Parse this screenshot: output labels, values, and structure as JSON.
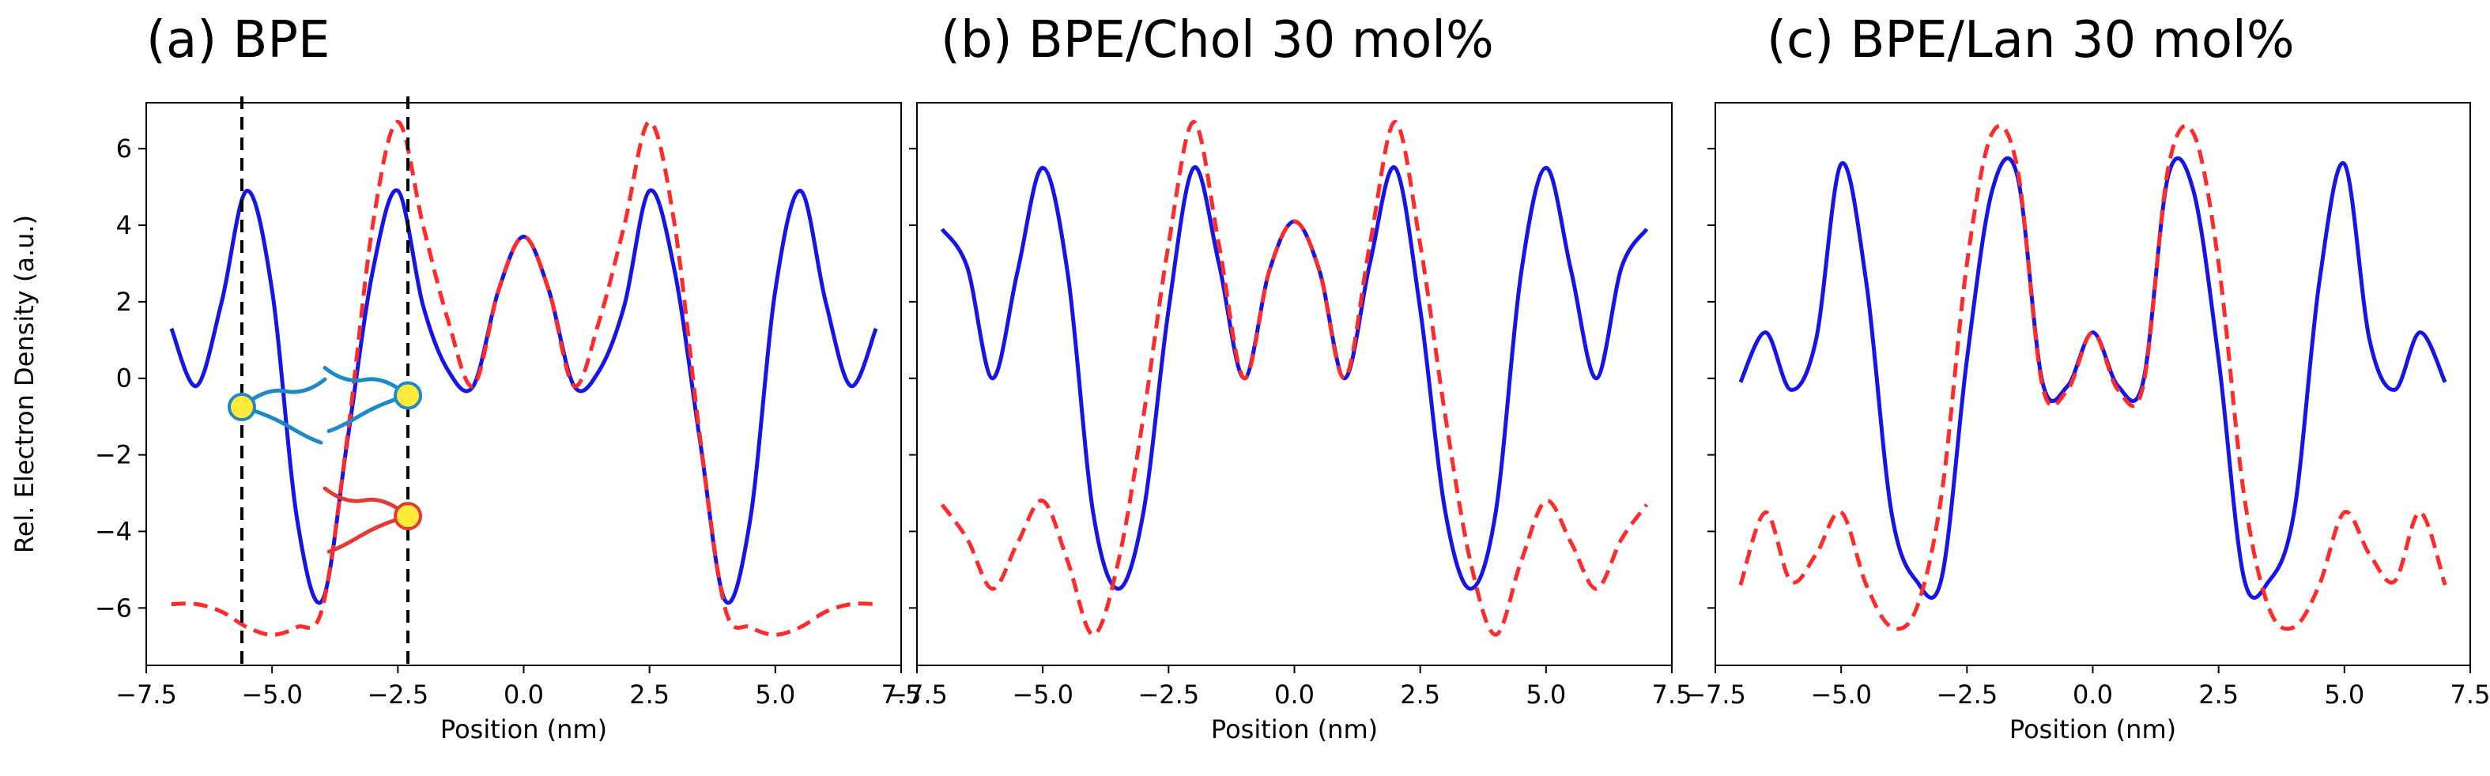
{
  "chart_data": [
    {
      "type": "line",
      "title": "(a)  BPE",
      "xlabel": "Position (nm)",
      "ylabel": "Rel. Electron Density (a.u.)",
      "xlim": [
        -7.5,
        7.5
      ],
      "ylim": [
        -7.5,
        7.2
      ],
      "xticks": [
        "−7.5",
        "−5.0",
        "−2.5",
        "0.0",
        "2.5",
        "5.0",
        "7.5"
      ],
      "yticks": [
        "−6",
        "−4",
        "−2",
        "0",
        "2",
        "4",
        "6"
      ],
      "show_ytick_labels": true,
      "vlines": [
        -5.6,
        -2.3
      ],
      "annotations": [
        {
          "type": "lipid-headgroup-icon",
          "x": -5.6,
          "y": -0.75,
          "head": "#FFEB3B",
          "tail": "#1E88C8"
        },
        {
          "type": "lipid-headgroup-icon",
          "x": -2.3,
          "y": -0.45,
          "head": "#FFEB3B",
          "tail": "#1E88C8"
        },
        {
          "type": "lipid-headgroup-icon",
          "x": -2.3,
          "y": -3.6,
          "head": "#FFEB3B",
          "tail": "#E53935"
        }
      ],
      "series": [
        {
          "color": "#1515E8",
          "style": "solid",
          "x": [
            -7.0,
            -6.5,
            -6.0,
            -5.5,
            -5.0,
            -4.5,
            -4.0,
            -3.5,
            -3.0,
            -2.5,
            -2.0,
            -1.5,
            -1.0,
            -0.5,
            0.0,
            0.5,
            1.0,
            1.5,
            2.0,
            2.5,
            3.0,
            3.5,
            4.0,
            4.5,
            5.0,
            5.5,
            6.0,
            6.5,
            7.0
          ],
          "y": [
            1.3,
            -0.2,
            2.0,
            4.9,
            2.3,
            -3.7,
            -5.8,
            -1.6,
            2.8,
            4.9,
            1.9,
            0.2,
            -0.2,
            2.3,
            3.7,
            2.3,
            -0.2,
            0.2,
            1.9,
            4.9,
            2.8,
            -1.6,
            -5.8,
            -3.7,
            2.3,
            4.9,
            2.0,
            -0.2,
            1.3
          ]
        },
        {
          "color": "#FF2A2A",
          "style": "dashed",
          "x": [
            -7.0,
            -6.5,
            -6.0,
            -5.5,
            -5.0,
            -4.5,
            -4.0,
            -3.5,
            -3.0,
            -2.5,
            -2.0,
            -1.5,
            -1.0,
            -0.5,
            0.0,
            0.5,
            1.0,
            1.5,
            2.0,
            2.5,
            3.0,
            3.5,
            4.0,
            4.5,
            5.0,
            5.5,
            6.0,
            6.5,
            7.0
          ],
          "y": [
            -5.9,
            -5.9,
            -6.1,
            -6.5,
            -6.7,
            -6.5,
            -6.0,
            -1.5,
            4.0,
            6.7,
            4.0,
            1.5,
            -0.2,
            2.3,
            3.7,
            2.3,
            -0.2,
            1.5,
            4.0,
            6.7,
            4.0,
            -1.5,
            -6.0,
            -6.5,
            -6.7,
            -6.5,
            -6.1,
            -5.9,
            -5.9
          ]
        }
      ]
    },
    {
      "type": "line",
      "title": "(b) BPE/Chol 30 mol%",
      "xlabel": "Position (nm)",
      "ylabel": "",
      "xlim": [
        -7.5,
        7.5
      ],
      "ylim": [
        -7.5,
        7.2
      ],
      "xticks": [
        "−7.5",
        "−5.0",
        "−2.5",
        "0.0",
        "2.5",
        "5.0",
        "7.5"
      ],
      "yticks": [
        "",
        "",
        "",
        "",
        "",
        "",
        ""
      ],
      "show_ytick_labels": false,
      "vlines": [],
      "annotations": [],
      "series": [
        {
          "color": "#1515E8",
          "style": "solid",
          "x": [
            -7.0,
            -6.5,
            -6.0,
            -5.5,
            -5.0,
            -4.5,
            -4.0,
            -3.5,
            -3.0,
            -2.5,
            -2.0,
            -1.5,
            -1.0,
            -0.5,
            0.0,
            0.5,
            1.0,
            1.5,
            2.0,
            2.5,
            3.0,
            3.5,
            4.0,
            4.5,
            5.0,
            5.5,
            6.0,
            6.5,
            7.0
          ],
          "y": [
            3.9,
            2.9,
            0.0,
            2.8,
            5.5,
            2.7,
            -3.5,
            -5.5,
            -3.5,
            1.8,
            5.5,
            3.0,
            0.0,
            2.8,
            4.1,
            2.8,
            0.0,
            3.0,
            5.5,
            1.8,
            -3.5,
            -5.5,
            -3.5,
            2.7,
            5.5,
            2.8,
            0.0,
            2.9,
            3.9
          ]
        },
        {
          "color": "#FF2A2A",
          "style": "dashed",
          "x": [
            -7.0,
            -6.5,
            -6.0,
            -5.5,
            -5.0,
            -4.5,
            -4.0,
            -3.5,
            -3.0,
            -2.5,
            -2.0,
            -1.5,
            -1.0,
            -0.5,
            0.0,
            0.5,
            1.0,
            1.5,
            2.0,
            2.5,
            3.0,
            3.5,
            4.0,
            4.5,
            5.0,
            5.5,
            6.0,
            6.5,
            7.0
          ],
          "y": [
            -3.3,
            -4.2,
            -5.5,
            -4.3,
            -3.2,
            -4.8,
            -6.7,
            -4.8,
            -1.0,
            3.5,
            6.7,
            3.5,
            0.0,
            2.8,
            4.1,
            2.8,
            0.0,
            3.5,
            6.7,
            3.5,
            -1.0,
            -4.8,
            -6.7,
            -4.8,
            -3.2,
            -4.3,
            -5.5,
            -4.2,
            -3.3
          ]
        }
      ]
    },
    {
      "type": "line",
      "title": "(c) BPE/Lan 30 mol%",
      "xlabel": "Position (nm)",
      "ylabel": "",
      "xlim": [
        -7.5,
        7.5
      ],
      "ylim": [
        -7.5,
        7.2
      ],
      "xticks": [
        "−7.5",
        "−5.0",
        "−2.5",
        "0.0",
        "2.5",
        "5.0",
        "7.5"
      ],
      "yticks": [
        "",
        "",
        "",
        "",
        "",
        "",
        ""
      ],
      "show_ytick_labels": false,
      "vlines": [],
      "annotations": [],
      "series": [
        {
          "color": "#1515E8",
          "style": "solid",
          "x": [
            -7.0,
            -6.5,
            -6.0,
            -5.5,
            -5.0,
            -4.5,
            -4.0,
            -3.5,
            -3.0,
            -2.5,
            -2.0,
            -1.5,
            -1.0,
            -0.5,
            0.0,
            0.5,
            1.0,
            1.5,
            2.0,
            2.5,
            3.0,
            3.5,
            4.0,
            4.5,
            5.0,
            5.5,
            6.0,
            6.5,
            7.0
          ],
          "y": [
            -0.1,
            1.2,
            -0.3,
            1.0,
            5.6,
            2.5,
            -3.5,
            -5.3,
            -5.2,
            0.5,
            4.9,
            5.3,
            -0.1,
            -0.2,
            1.2,
            -0.2,
            -0.1,
            5.3,
            4.9,
            0.5,
            -5.2,
            -5.3,
            -3.5,
            2.5,
            5.6,
            1.0,
            -0.3,
            1.2,
            -0.1
          ]
        },
        {
          "color": "#FF2A2A",
          "style": "dashed",
          "x": [
            -7.0,
            -6.5,
            -6.0,
            -5.5,
            -5.0,
            -4.5,
            -4.0,
            -3.5,
            -3.0,
            -2.5,
            -2.0,
            -1.5,
            -1.0,
            -0.5,
            0.0,
            0.5,
            1.0,
            1.5,
            2.0,
            2.5,
            3.0,
            3.5,
            4.0,
            4.5,
            5.0,
            5.5,
            6.0,
            6.5,
            7.0
          ],
          "y": [
            -5.4,
            -3.5,
            -5.3,
            -4.6,
            -3.5,
            -5.4,
            -6.5,
            -6.0,
            -3.0,
            3.0,
            6.4,
            5.5,
            -0.2,
            -0.3,
            1.2,
            -0.3,
            -0.2,
            5.5,
            6.4,
            3.0,
            -3.0,
            -6.0,
            -6.5,
            -5.4,
            -3.5,
            -4.6,
            -5.3,
            -3.5,
            -5.4
          ]
        }
      ]
    }
  ]
}
